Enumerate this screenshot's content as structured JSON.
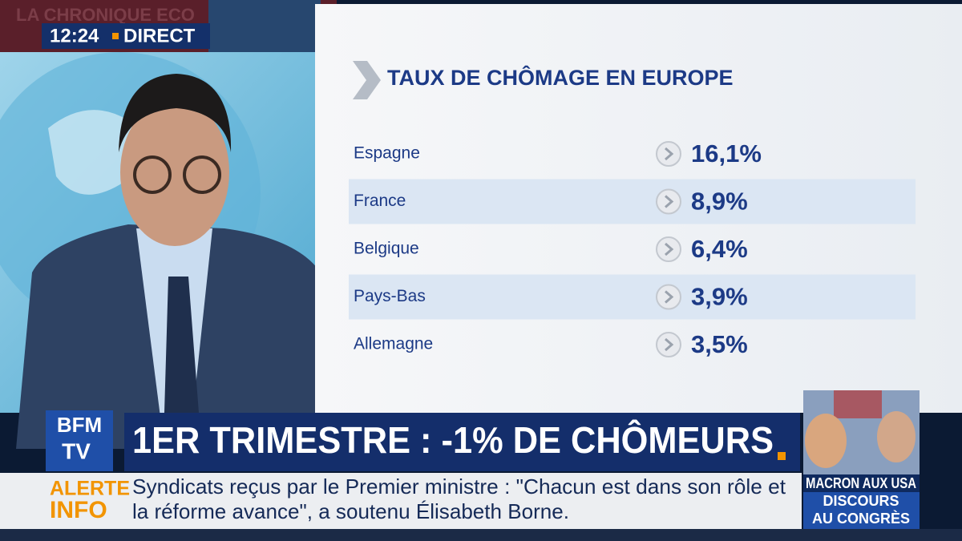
{
  "background": {
    "show_title": "LA CHRONIQUE ECO"
  },
  "clock": {
    "time": "12:24",
    "label": "DIRECT"
  },
  "table": {
    "title": "TAUX DE CHÔMAGE EN EUROPE",
    "rows": [
      [
        "Espagne",
        "16,1%"
      ],
      [
        "France",
        "8,9%"
      ],
      [
        "Belgique",
        "6,4%"
      ],
      [
        "Pays-Bas",
        "3,9%"
      ],
      [
        "Allemagne",
        "3,5%"
      ]
    ]
  },
  "logo": {
    "top": "BFM",
    "bottom": "TV"
  },
  "headline": "1ER TRIMESTRE : -1% DE CHÔMEURS",
  "ticker": {
    "tag_top": "ALERTE",
    "tag_bottom": "INFO",
    "lines": [
      "Syndicats reçus par le Premier ministre : \"Chacun est dans son rôle et",
      "la réforme avance\", a soutenu Élisabeth Borne."
    ]
  },
  "side_box": {
    "lines": [
      "MACRON AUX USA",
      "DISCOURS",
      "AU CONGRÈS"
    ]
  }
}
